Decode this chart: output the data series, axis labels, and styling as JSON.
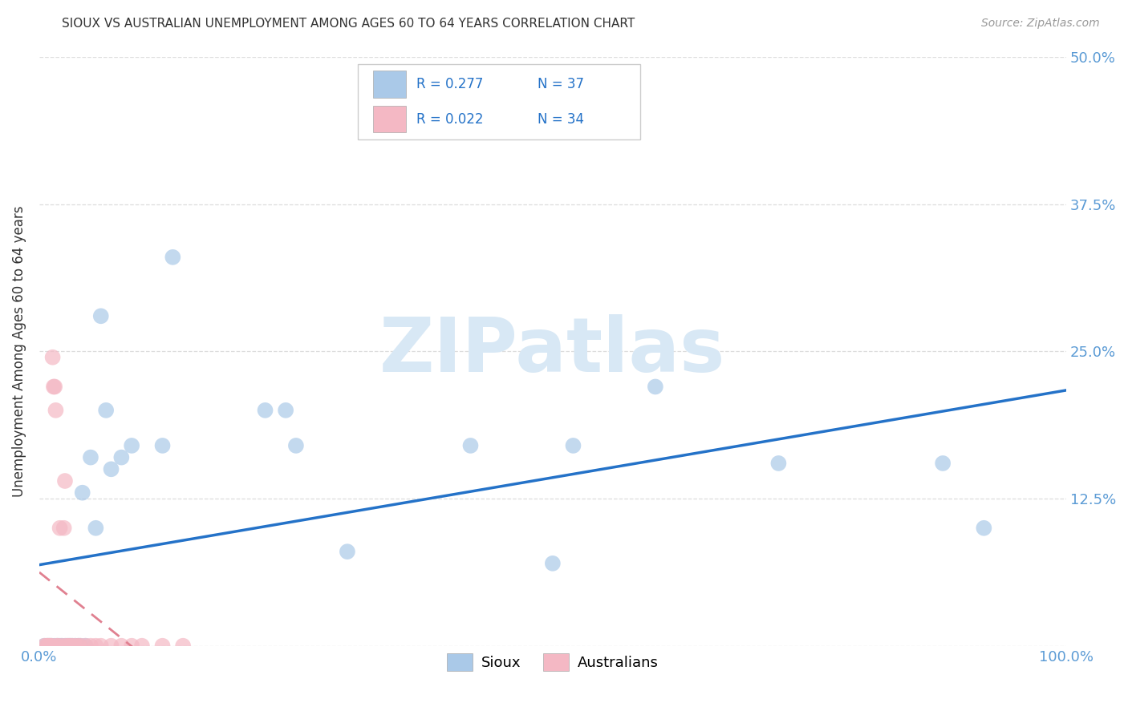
{
  "title": "SIOUX VS AUSTRALIAN UNEMPLOYMENT AMONG AGES 60 TO 64 YEARS CORRELATION CHART",
  "source": "Source: ZipAtlas.com",
  "ylabel_label": "Unemployment Among Ages 60 to 64 years",
  "legend_labels": [
    "Sioux",
    "Australians"
  ],
  "sioux_R": "0.277",
  "sioux_N": "37",
  "aus_R": "0.022",
  "aus_N": "34",
  "sioux_color": "#aac9e8",
  "aus_color": "#f4b8c4",
  "sioux_line_color": "#2472c8",
  "aus_line_color": "#e08090",
  "sioux_x": [
    0.005,
    0.008,
    0.01,
    0.012,
    0.015,
    0.018,
    0.02,
    0.022,
    0.025,
    0.028,
    0.03,
    0.032,
    0.035,
    0.038,
    0.04,
    0.042,
    0.045,
    0.05,
    0.055,
    0.06,
    0.065,
    0.07,
    0.08,
    0.09,
    0.12,
    0.13,
    0.22,
    0.24,
    0.25,
    0.3,
    0.42,
    0.5,
    0.52,
    0.6,
    0.72,
    0.88,
    0.92
  ],
  "sioux_y": [
    0.0,
    0.0,
    0.0,
    0.0,
    0.0,
    0.0,
    0.0,
    0.0,
    0.0,
    0.0,
    0.0,
    0.0,
    0.0,
    0.0,
    0.0,
    0.13,
    0.0,
    0.16,
    0.1,
    0.28,
    0.2,
    0.15,
    0.16,
    0.17,
    0.17,
    0.33,
    0.2,
    0.2,
    0.17,
    0.08,
    0.17,
    0.07,
    0.17,
    0.22,
    0.155,
    0.155,
    0.1
  ],
  "aus_x": [
    0.005,
    0.007,
    0.008,
    0.009,
    0.01,
    0.011,
    0.012,
    0.013,
    0.014,
    0.015,
    0.016,
    0.017,
    0.018,
    0.02,
    0.022,
    0.024,
    0.025,
    0.026,
    0.028,
    0.03,
    0.032,
    0.035,
    0.038,
    0.04,
    0.045,
    0.05,
    0.055,
    0.06,
    0.07,
    0.08,
    0.09,
    0.1,
    0.12,
    0.14
  ],
  "aus_y": [
    0.0,
    0.0,
    0.0,
    0.0,
    0.0,
    0.0,
    0.0,
    0.245,
    0.22,
    0.22,
    0.2,
    0.0,
    0.0,
    0.1,
    0.0,
    0.1,
    0.14,
    0.0,
    0.0,
    0.0,
    0.0,
    0.0,
    0.0,
    0.0,
    0.0,
    0.0,
    0.0,
    0.0,
    0.0,
    0.0,
    0.0,
    0.0,
    0.0,
    0.0
  ],
  "background_color": "#ffffff",
  "title_color": "#333333",
  "axis_color": "#5b9bd5",
  "grid_color": "#dddddd",
  "watermark_text": "ZIPatlas",
  "watermark_color": "#d8e8f5",
  "xlim": [
    0.0,
    1.0
  ],
  "ylim": [
    0.0,
    0.5
  ],
  "yticks": [
    0.0,
    0.125,
    0.25,
    0.375,
    0.5
  ],
  "ytick_labels": [
    "",
    "12.5%",
    "25.0%",
    "37.5%",
    "50.0%"
  ],
  "xticks": [
    0.0,
    1.0
  ],
  "xtick_labels": [
    "0.0%",
    "100.0%"
  ]
}
